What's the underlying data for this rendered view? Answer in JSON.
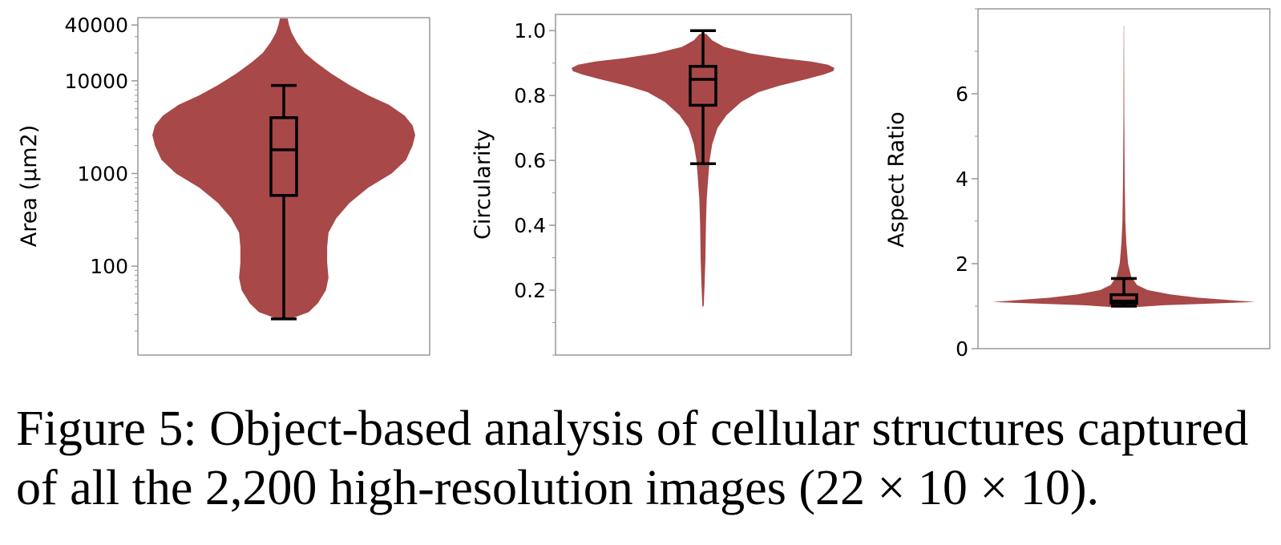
{
  "chart_data": [
    {
      "type": "violin",
      "ylabel": "Area (µm2)",
      "yscale": "log",
      "ylim": [
        11,
        48000
      ],
      "yticks": [
        100,
        1000,
        10000,
        40000
      ],
      "ytick_labels": [
        "100",
        "1000",
        "10000",
        "40000"
      ],
      "violin_color": "#a84848",
      "violin": [
        {
          "y": 27,
          "w": 0.05
        },
        {
          "y": 32,
          "w": 0.19
        },
        {
          "y": 40,
          "w": 0.26
        },
        {
          "y": 55,
          "w": 0.32
        },
        {
          "y": 75,
          "w": 0.34
        },
        {
          "y": 110,
          "w": 0.33
        },
        {
          "y": 160,
          "w": 0.33
        },
        {
          "y": 230,
          "w": 0.34
        },
        {
          "y": 330,
          "w": 0.4
        },
        {
          "y": 480,
          "w": 0.5
        },
        {
          "y": 700,
          "w": 0.64
        },
        {
          "y": 1000,
          "w": 0.82
        },
        {
          "y": 1400,
          "w": 0.93
        },
        {
          "y": 2000,
          "w": 0.98
        },
        {
          "y": 2600,
          "w": 1.0
        },
        {
          "y": 3300,
          "w": 0.98
        },
        {
          "y": 4200,
          "w": 0.92
        },
        {
          "y": 5500,
          "w": 0.8
        },
        {
          "y": 7000,
          "w": 0.64
        },
        {
          "y": 9000,
          "w": 0.5
        },
        {
          "y": 12000,
          "w": 0.36
        },
        {
          "y": 16000,
          "w": 0.24
        },
        {
          "y": 20000,
          "w": 0.16
        },
        {
          "y": 26000,
          "w": 0.1
        },
        {
          "y": 33000,
          "w": 0.06
        },
        {
          "y": 40000,
          "w": 0.04
        },
        {
          "y": 47000,
          "w": 0.03
        }
      ],
      "box": {
        "whisker_low": 27,
        "q1": 580,
        "median": 1800,
        "q3": 4000,
        "whisker_high": 8900
      }
    },
    {
      "type": "violin",
      "ylabel": "Circularity",
      "yscale": "linear",
      "ylim": [
        0.0,
        1.05
      ],
      "yticks": [
        0.2,
        0.4,
        0.6,
        0.8,
        1.0
      ],
      "ytick_labels": [
        "0.2",
        "0.4",
        "0.6",
        "0.8",
        "1.0"
      ],
      "violin_color": "#a84848",
      "violin": [
        {
          "y": 0.15,
          "w": 0.005
        },
        {
          "y": 0.22,
          "w": 0.012
        },
        {
          "y": 0.3,
          "w": 0.018
        },
        {
          "y": 0.4,
          "w": 0.022
        },
        {
          "y": 0.48,
          "w": 0.028
        },
        {
          "y": 0.55,
          "w": 0.04
        },
        {
          "y": 0.6,
          "w": 0.05
        },
        {
          "y": 0.65,
          "w": 0.07
        },
        {
          "y": 0.7,
          "w": 0.11
        },
        {
          "y": 0.74,
          "w": 0.18
        },
        {
          "y": 0.78,
          "w": 0.29
        },
        {
          "y": 0.81,
          "w": 0.42
        },
        {
          "y": 0.83,
          "w": 0.58
        },
        {
          "y": 0.85,
          "w": 0.78
        },
        {
          "y": 0.865,
          "w": 0.92
        },
        {
          "y": 0.875,
          "w": 0.99
        },
        {
          "y": 0.885,
          "w": 1.0
        },
        {
          "y": 0.895,
          "w": 0.95
        },
        {
          "y": 0.905,
          "w": 0.82
        },
        {
          "y": 0.915,
          "w": 0.6
        },
        {
          "y": 0.93,
          "w": 0.36
        },
        {
          "y": 0.95,
          "w": 0.16
        },
        {
          "y": 0.97,
          "w": 0.07
        },
        {
          "y": 0.99,
          "w": 0.025
        }
      ],
      "box": {
        "whisker_low": 0.59,
        "q1": 0.77,
        "median": 0.85,
        "q3": 0.89,
        "whisker_high": 1.0
      }
    },
    {
      "type": "violin",
      "ylabel": "Aspect Ratio",
      "yscale": "linear",
      "ylim": [
        0,
        8.0
      ],
      "yticks": [
        0,
        2,
        4,
        6
      ],
      "ytick_labels": [
        "0",
        "2",
        "4",
        "6"
      ],
      "violin_color": "#a84848",
      "violin": [
        {
          "y": 0.97,
          "w": 0.05
        },
        {
          "y": 1.02,
          "w": 0.3
        },
        {
          "y": 1.07,
          "w": 0.75
        },
        {
          "y": 1.1,
          "w": 1.0
        },
        {
          "y": 1.14,
          "w": 0.82
        },
        {
          "y": 1.2,
          "w": 0.56
        },
        {
          "y": 1.28,
          "w": 0.35
        },
        {
          "y": 1.38,
          "w": 0.18
        },
        {
          "y": 1.5,
          "w": 0.1
        },
        {
          "y": 1.7,
          "w": 0.055
        },
        {
          "y": 2.0,
          "w": 0.032
        },
        {
          "y": 2.5,
          "w": 0.018
        },
        {
          "y": 3.0,
          "w": 0.011
        },
        {
          "y": 4.0,
          "w": 0.006
        },
        {
          "y": 5.5,
          "w": 0.003
        },
        {
          "y": 7.6,
          "w": 0.001
        }
      ],
      "box": {
        "whisker_low": 1.0,
        "q1": 1.07,
        "median": 1.12,
        "q3": 1.27,
        "whisker_high": 1.65
      }
    }
  ],
  "caption": {
    "line1": "Figure 5: Object-based analysis of cellular structures captured",
    "line2": "of all the 2,200 high-resolution images (22 × 10 × 10)."
  }
}
